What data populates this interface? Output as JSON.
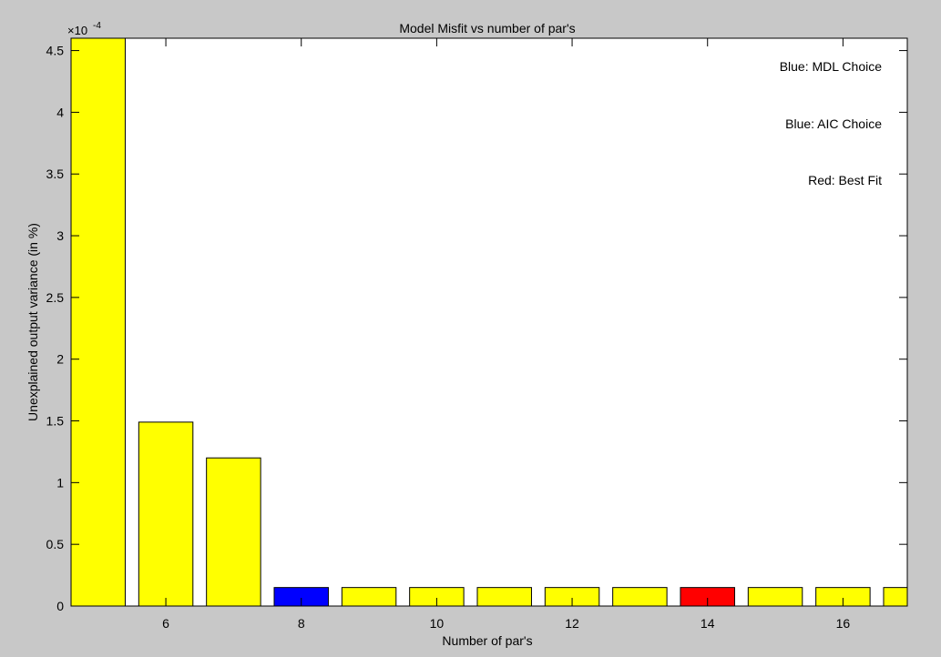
{
  "chart_data": {
    "type": "bar",
    "title": "Model Misfit vs number of par's",
    "xlabel": "Number of par's",
    "ylabel": "Unexplained output variance (in %)",
    "y_exponent_label": "×10",
    "y_exponent_power": "-4",
    "x": [
      5,
      6,
      7,
      8,
      9,
      10,
      11,
      12,
      13,
      14,
      15,
      16,
      17
    ],
    "values": [
      4.6,
      1.49,
      1.2,
      0.15,
      0.15,
      0.15,
      0.15,
      0.15,
      0.15,
      0.15,
      0.15,
      0.15,
      0.15
    ],
    "value_multiplier": 0.0001,
    "bar_colors": [
      "#ffff00",
      "#ffff00",
      "#ffff00",
      "#0000ff",
      "#ffff00",
      "#ffff00",
      "#ffff00",
      "#ffff00",
      "#ffff00",
      "#ff0000",
      "#ffff00",
      "#ffff00",
      "#ffff00"
    ],
    "xlim": [
      4.6,
      16.95
    ],
    "ylim": [
      0,
      4.6
    ],
    "xticks": [
      6,
      8,
      10,
      12,
      14,
      16
    ],
    "xtick_labels": [
      "6",
      "8",
      "10",
      "12",
      "14",
      "16"
    ],
    "yticks": [
      0,
      0.5,
      1,
      1.5,
      2,
      2.5,
      3,
      3.5,
      4,
      4.5
    ],
    "ytick_labels": [
      "0",
      "0.5",
      "1",
      "1.5",
      "2",
      "2.5",
      "3",
      "3.5",
      "4",
      "4.5"
    ],
    "annotations": [
      "Blue: MDL Choice",
      "Blue: AIC Choice",
      "Red: Best Fit"
    ],
    "grid": false
  }
}
